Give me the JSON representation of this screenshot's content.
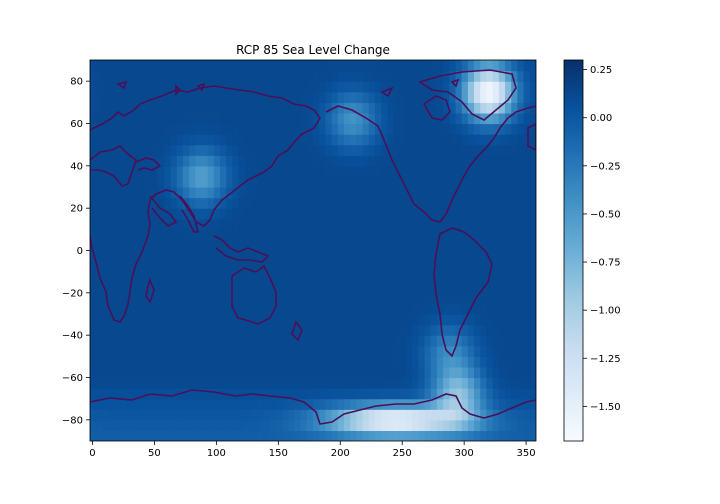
{
  "chart_data": {
    "type": "heatmap",
    "title": "RCP 85 Sea Level Change",
    "xlabel": "",
    "ylabel": "",
    "xlim": [
      -2,
      358
    ],
    "ylim": [
      -90,
      90
    ],
    "x_ticks": [
      0,
      50,
      100,
      150,
      200,
      250,
      300,
      350
    ],
    "y_ticks": [
      80,
      60,
      40,
      20,
      0,
      -20,
      -40,
      -60,
      -80
    ],
    "colorbar": {
      "colormap": "Blues_r",
      "range": [
        -1.68,
        0.3
      ],
      "ticks": [
        "0.25",
        "0.00",
        "−0.25",
        "−0.50",
        "−0.75",
        "−1.00",
        "−1.25",
        "−1.50"
      ],
      "tick_values": [
        0.25,
        0.0,
        -0.25,
        -0.5,
        -0.75,
        -1.0,
        -1.25,
        -1.5
      ]
    },
    "background_value": 0.12,
    "features": [
      {
        "name": "greenland-minimum",
        "lon": 320,
        "lat": 75,
        "value": -1.65
      },
      {
        "name": "antarctic-minimum",
        "lon": 245,
        "lat": -80,
        "value": -1.45
      },
      {
        "name": "tibet-low",
        "lon": 88,
        "lat": 35,
        "value": -0.55
      },
      {
        "name": "alaska-low",
        "lon": 210,
        "lat": 62,
        "value": -0.45
      },
      {
        "name": "patagonia-low",
        "lon": 288,
        "lat": -48,
        "value": -0.35
      },
      {
        "name": "antarctic-peninsula-low",
        "lon": 295,
        "lat": -68,
        "value": -0.8
      }
    ],
    "contour_color": "#4b1059",
    "grid": false
  }
}
